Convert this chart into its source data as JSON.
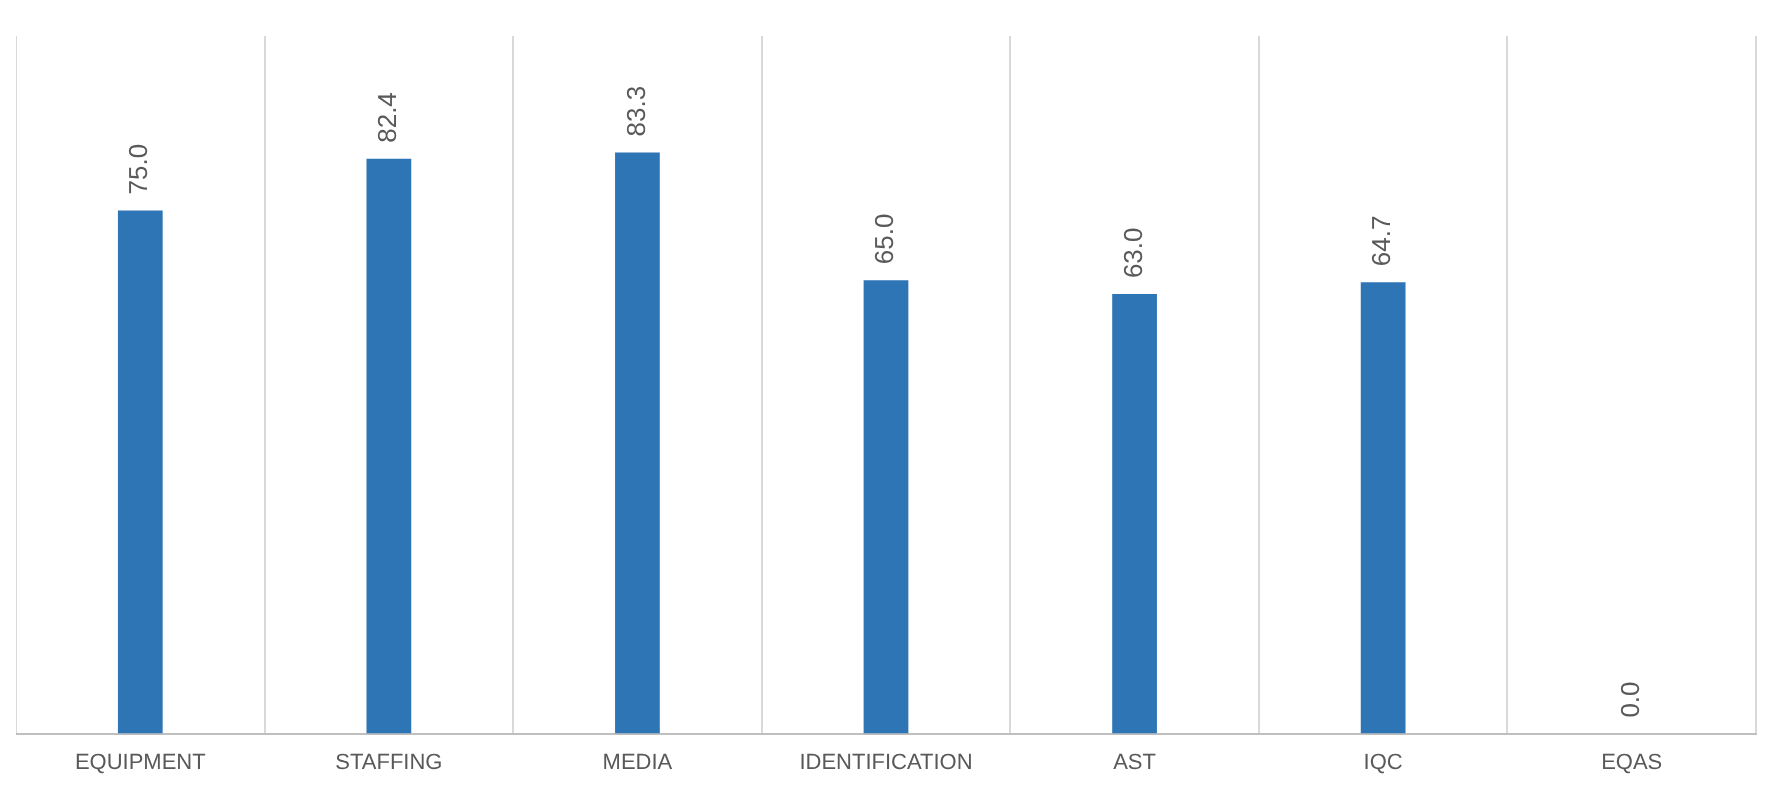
{
  "chart_data": {
    "type": "bar",
    "categories": [
      "EQUIPMENT",
      "STAFFING",
      "MEDIA",
      "IDENTIFICATION",
      "AST",
      "IQC",
      "EQAS"
    ],
    "values": [
      75.0,
      82.4,
      83.3,
      65.0,
      63.0,
      64.7,
      0.0
    ],
    "value_labels": [
      "75.0",
      "82.4",
      "83.3",
      "65.0",
      "63.0",
      "64.7",
      "0.0"
    ],
    "color": "#2e75b6",
    "grid": "x"
  }
}
